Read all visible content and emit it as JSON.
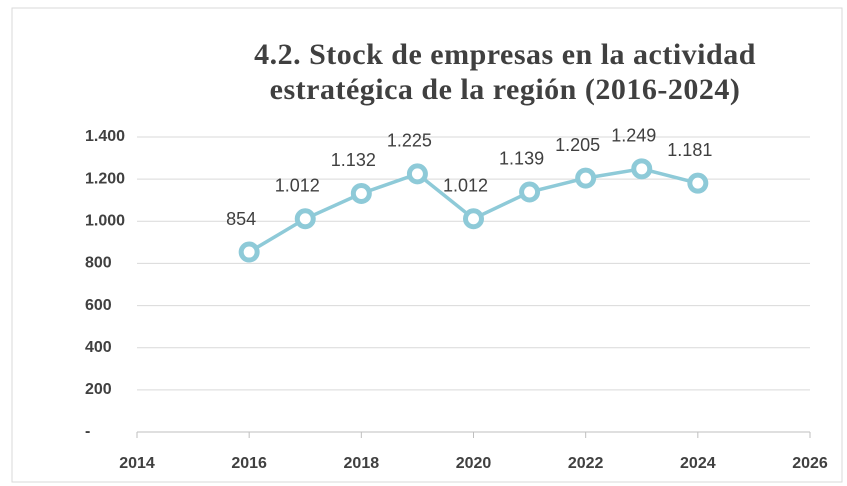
{
  "chart_data": {
    "type": "line",
    "title": "4.2. Stock de empresas en la actividad estratégica de la región (2016-2024)",
    "x": [
      2016,
      2017,
      2018,
      2019,
      2020,
      2021,
      2022,
      2023,
      2024
    ],
    "values": [
      854,
      1012,
      1132,
      1225,
      1012,
      1139,
      1205,
      1249,
      1181
    ],
    "value_labels": [
      "854",
      "1.012",
      "1.132",
      "1.225",
      "1.012",
      "1.139",
      "1.205",
      "1.249",
      "1.181"
    ],
    "color": "#8ecad8",
    "xlim": [
      2014,
      2026
    ],
    "xticks": [
      2014,
      2016,
      2018,
      2020,
      2022,
      2024,
      2026
    ],
    "ylim": [
      0,
      1400
    ],
    "yticks": [
      {
        "value": 0,
        "label": "-"
      },
      200,
      400,
      600,
      800,
      {
        "value": 1000,
        "label": "1.000"
      },
      {
        "value": 1200,
        "label": "1.200"
      },
      {
        "value": 1400,
        "label": "1.400"
      }
    ],
    "grid": true
  }
}
